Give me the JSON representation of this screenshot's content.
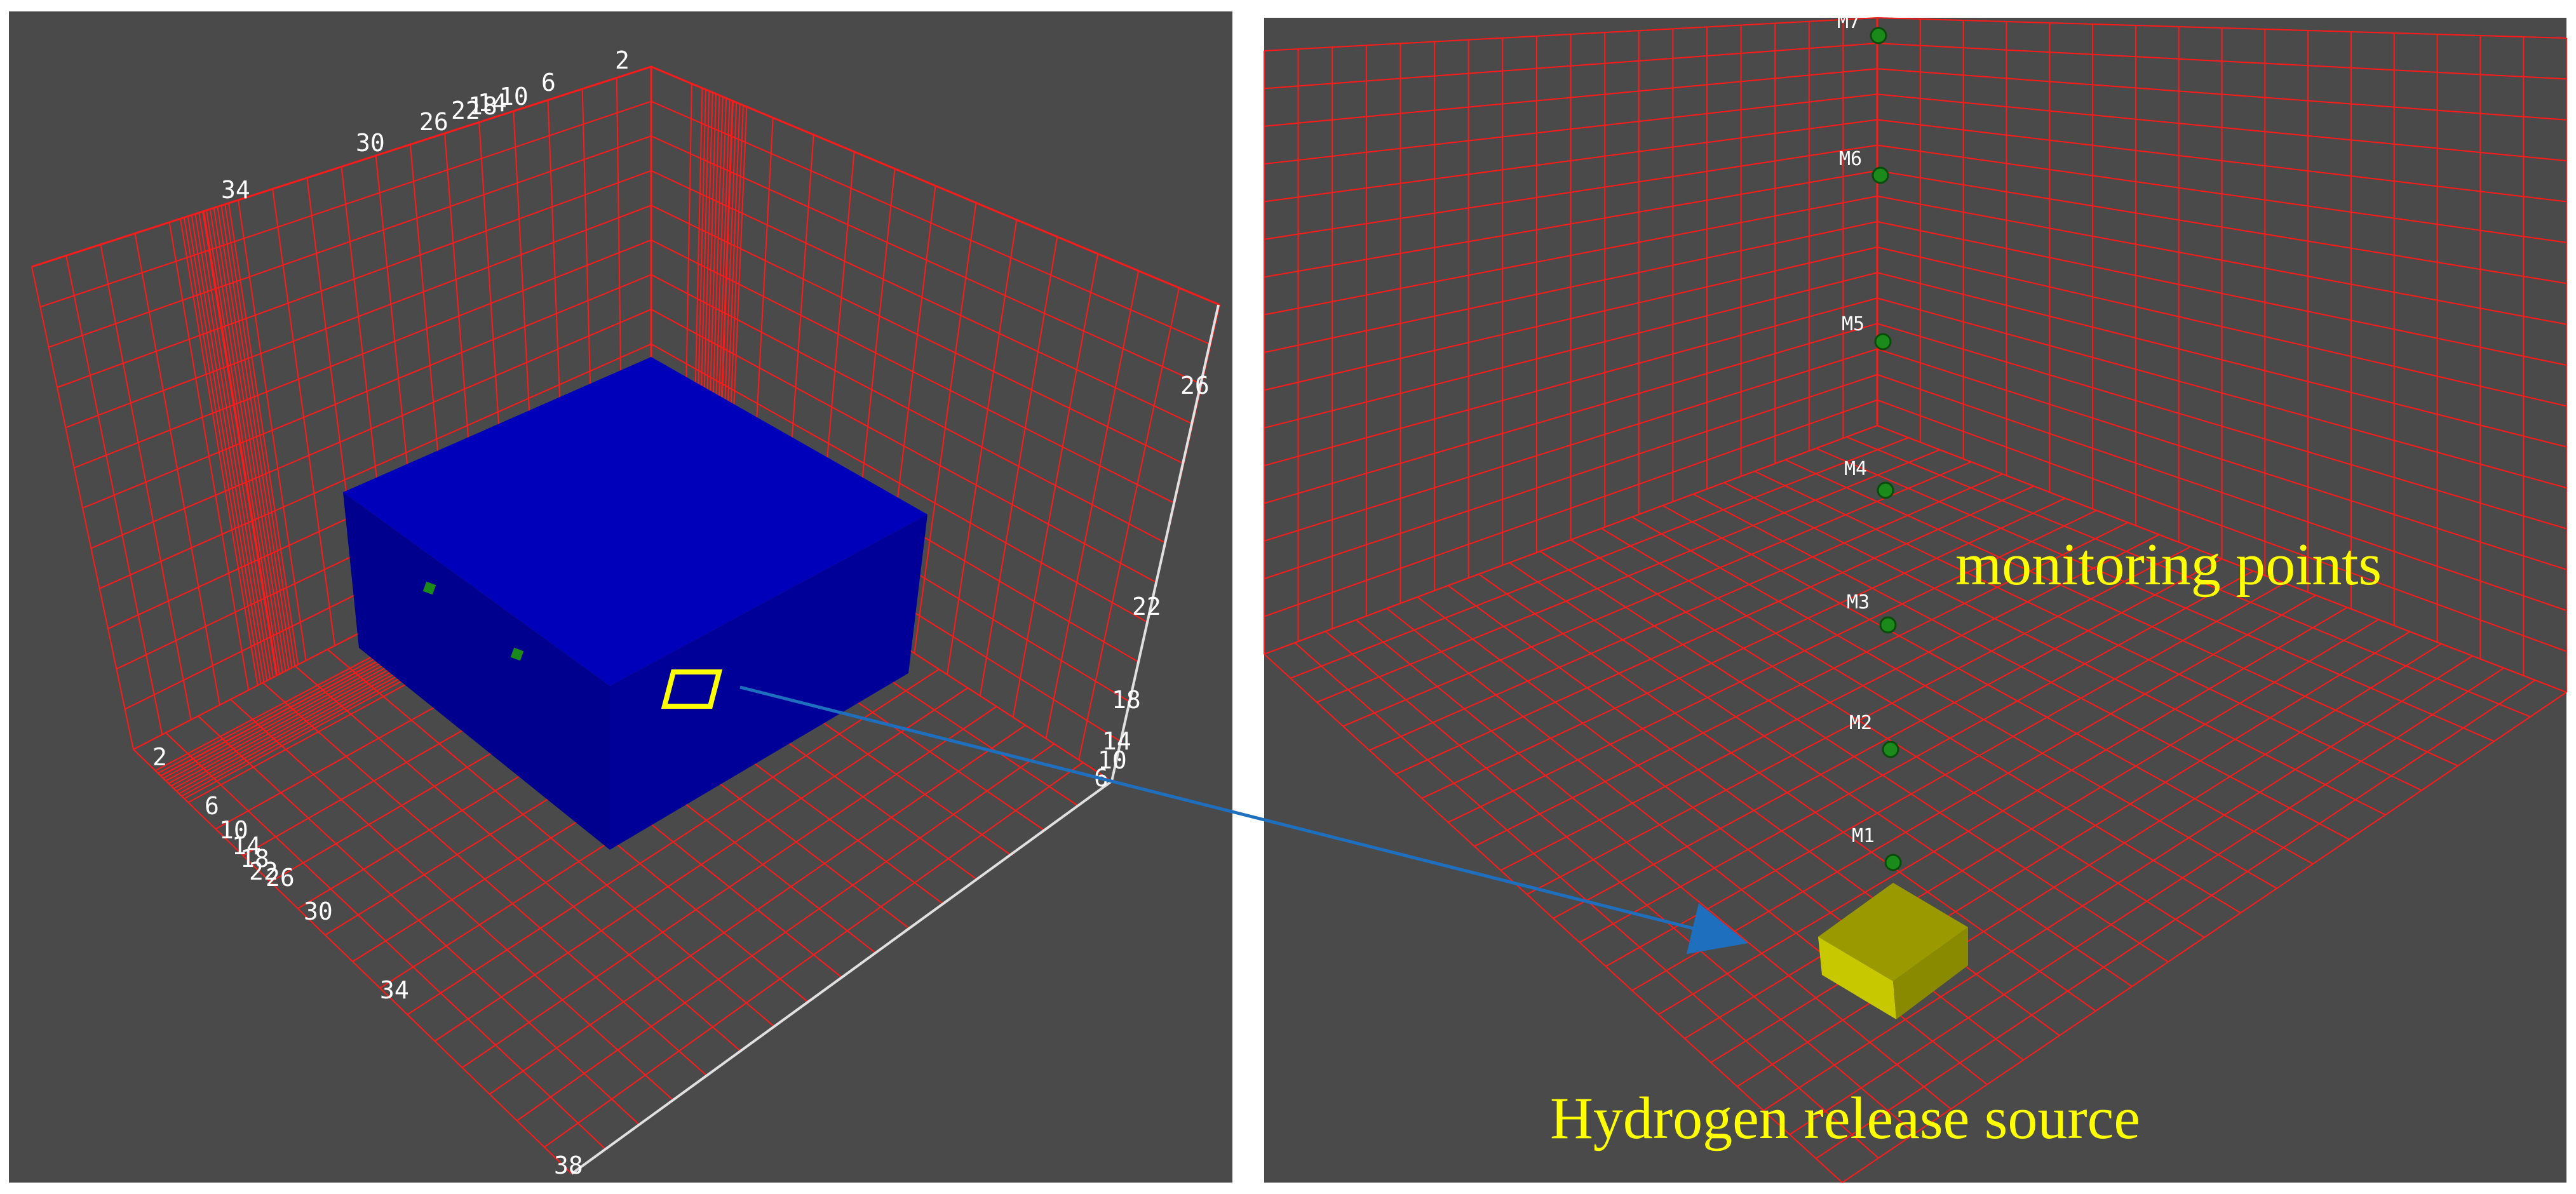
{
  "left_panel": {
    "x_axis_ticks": [
      "2",
      "6",
      "10",
      "14",
      "18",
      "22",
      "26",
      "30",
      "34",
      "38"
    ],
    "y_axis_ticks": [
      "34",
      "30",
      "26",
      "22",
      "18",
      "14",
      "10",
      "6",
      "2"
    ],
    "z_axis_ticks": [
      "26",
      "22",
      "18",
      "14",
      "10",
      "6"
    ]
  },
  "right_panel": {
    "monitoring_points": [
      "M1",
      "M2",
      "M3",
      "M4",
      "M5",
      "M6",
      "M7"
    ],
    "monitoring_caption": "monitoring points",
    "source_caption": "Hydrogen release source"
  },
  "colors": {
    "background": "#4a4a4a",
    "grid": "#ff1a1a",
    "container": "#0000bb",
    "source": "#a0a000",
    "caption": "#ffff00",
    "arrow": "#1f6fbf",
    "monitor_point": "#1a8a1a"
  }
}
